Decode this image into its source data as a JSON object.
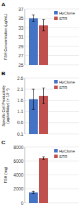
{
  "chart_data": [
    {
      "type": "bar",
      "title": "A",
      "y_label": "FSH Concentration (μg/mL)",
      "categories": [
        null
      ],
      "series": [
        {
          "name": "HyClone",
          "color": "#4472C4",
          "values": [
            35.0
          ],
          "errors": [
            0.7
          ]
        },
        {
          "name": "STR",
          "color": "#C0504D",
          "values": [
            33.5
          ],
          "errors": [
            1.2
          ]
        }
      ],
      "ylim": [
        25,
        37
      ],
      "yticks": [
        25,
        27,
        29,
        31,
        33,
        35,
        37
      ],
      "grid": true,
      "legend": "upper right",
      "tick_labels": "y"
    },
    {
      "type": "bar",
      "title": "B",
      "y_label": "Specific Cell Productivity\n(μg/cell/day) (× 10⁻¹)",
      "categories": [
        null
      ],
      "series": [
        {
          "name": "HyClone",
          "color": "#4472C4",
          "values": [
            1.65
          ],
          "errors": [
            0.45
          ]
        },
        {
          "name": "STR",
          "color": "#C0504D",
          "values": [
            1.8
          ],
          "errors": [
            0.35
          ]
        }
      ],
      "ylim": [
        0.1,
        2.6
      ],
      "yticks": [
        0.1,
        0.6,
        1.1,
        1.6,
        2.1,
        2.6
      ],
      "grid": true,
      "legend": "upper right",
      "tick_labels": "y"
    },
    {
      "type": "bar",
      "title": "C",
      "y_label": "FSH (mg)",
      "categories": [
        null
      ],
      "series": [
        {
          "name": "HyClone",
          "color": "#4472C4",
          "values": [
            1500
          ],
          "errors": [
            150
          ]
        },
        {
          "name": "STR",
          "color": "#C0504D",
          "values": [
            6400
          ],
          "errors": [
            200
          ]
        }
      ],
      "ylim": [
        0,
        8000
      ],
      "yticks": [
        0,
        2000,
        4000,
        6000,
        8000
      ],
      "grid": true,
      "legend": "upper right",
      "tick_labels": "y"
    }
  ]
}
